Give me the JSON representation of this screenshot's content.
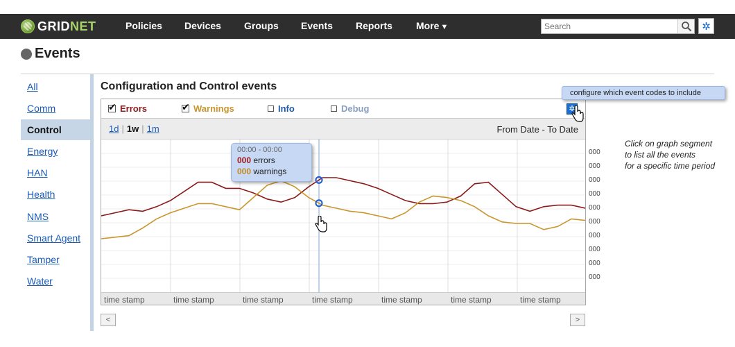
{
  "app": {
    "brand_main": "GRID",
    "brand_accent": "NET"
  },
  "nav": {
    "items": [
      "Policies",
      "Devices",
      "Groups",
      "Events",
      "Reports"
    ],
    "more_label": "More",
    "search_placeholder": "Search"
  },
  "page": {
    "title": "Events"
  },
  "sidebar": {
    "items": [
      "All",
      "Comm",
      "Control",
      "Energy",
      "HAN",
      "Health",
      "NMS",
      "Smart Agent",
      "Tamper",
      "Water"
    ],
    "active": "Control"
  },
  "main": {
    "section_title": "Configuration and Control events",
    "legend": {
      "errors": {
        "label": "Errors",
        "checked": true,
        "color": "#8b1a1a"
      },
      "warnings": {
        "label": "Warnings",
        "checked": true,
        "color": "#c9962e"
      },
      "info": {
        "label": "Info",
        "checked": false,
        "color": "#1e5aa8"
      },
      "debug": {
        "label": "Debug",
        "checked": false,
        "color": "#8a9fc0"
      }
    },
    "ranges": {
      "d1": "1d",
      "w1": "1w",
      "m1": "1m",
      "selected": "1w"
    },
    "date_range": "From Date - To Date",
    "config_tooltip": "configure which event codes to include",
    "hover_tooltip": {
      "time": "00:00 - 00:00",
      "errors_count": "000",
      "errors_label": "errors",
      "warnings_count": "000",
      "warnings_label": "warnings"
    },
    "side_note": [
      "Click on graph segment",
      "to list all the events",
      "for a specific time period"
    ],
    "pager": {
      "prev": "<",
      "next": ">"
    }
  },
  "chart_data": {
    "type": "line",
    "x": [
      0,
      1,
      2,
      3,
      4,
      5,
      6,
      7,
      8,
      9,
      10,
      11,
      12,
      13,
      14,
      15,
      16,
      17,
      18,
      19,
      20,
      21,
      22,
      23,
      24,
      25,
      26,
      27,
      28,
      29,
      30,
      31,
      32,
      33,
      34,
      35
    ],
    "xtick_labels": [
      "time stamp",
      "time stamp",
      "time stamp",
      "time stamp",
      "time stamp",
      "time stamp",
      "time stamp"
    ],
    "ytick_labels": [
      "000",
      "000",
      "000",
      "000",
      "000",
      "000",
      "000",
      "000",
      "000",
      "000"
    ],
    "series": [
      {
        "name": "Errors",
        "color": "#8b1a1a",
        "values": [
          5.0,
          5.2,
          5.4,
          5.3,
          5.6,
          6.0,
          6.6,
          7.2,
          7.2,
          6.8,
          6.8,
          6.5,
          6.1,
          5.9,
          6.2,
          6.9,
          7.5,
          7.5,
          7.3,
          7.1,
          6.8,
          6.4,
          6.0,
          5.8,
          5.8,
          5.9,
          6.3,
          7.1,
          7.2,
          6.4,
          5.6,
          5.3,
          5.6,
          5.7,
          5.7,
          5.5
        ]
      },
      {
        "name": "Warnings",
        "color": "#c9962e",
        "values": [
          3.5,
          3.6,
          3.7,
          4.2,
          4.8,
          5.2,
          5.5,
          5.8,
          5.8,
          5.6,
          5.4,
          6.2,
          7.0,
          7.3,
          6.9,
          6.2,
          5.7,
          5.5,
          5.3,
          5.2,
          5.0,
          4.8,
          5.2,
          5.9,
          6.3,
          6.2,
          6.0,
          5.6,
          5.0,
          4.6,
          4.5,
          4.5,
          4.1,
          4.3,
          4.8,
          4.7
        ]
      }
    ],
    "ylim": [
      0,
      10
    ],
    "grid": true,
    "legend": "top"
  }
}
